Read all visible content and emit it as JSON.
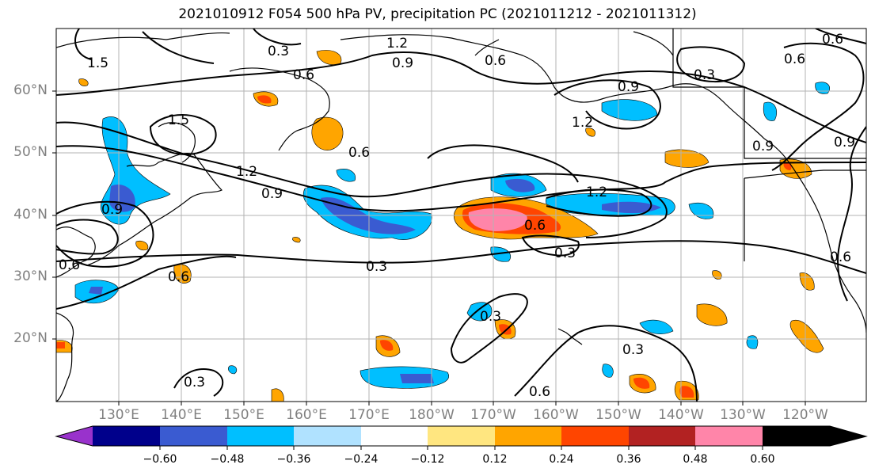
{
  "title": "2021010912 F054 500 hPa PV, precipitation PC (2021011212 - 2021011312)",
  "lat_labels": [
    "60°N",
    "50°N",
    "40°N",
    "30°N",
    "20°N"
  ],
  "lon_labels": [
    "130°E",
    "140°E",
    "150°E",
    "160°E",
    "170°E",
    "180°W",
    "170°W",
    "160°W",
    "150°W",
    "140°W",
    "130°W",
    "120°W"
  ],
  "contour_labels": [
    "1.5",
    "0.3",
    "1.2",
    "0.9",
    "0.6",
    "0.6",
    "1.5",
    "1.2",
    "0.9",
    "0.6",
    "0.9",
    "1.2",
    "1.2",
    "0.9",
    "0.6",
    "0.6",
    "0.3",
    "0.3",
    "0.3",
    "0.3",
    "0.3",
    "0.6",
    "0.6",
    "0.6",
    "0.3",
    "0.9",
    "0.9",
    "0.6",
    "0.6"
  ],
  "colorbar": {
    "labels": [
      "−0.60",
      "−0.48",
      "−0.36",
      "−0.24",
      "−0.12",
      "0.12",
      "0.24",
      "0.36",
      "0.48",
      "0.60"
    ],
    "colors": [
      "#9932cc",
      "#00008b",
      "#3a5bd1",
      "#00bfff",
      "#b0e2ff",
      "#ffffff",
      "#ffe680",
      "#ffa500",
      "#ff4500",
      "#b22222",
      "#ff85a9"
    ]
  },
  "map_colors": {
    "land_line": "#000000",
    "grid": "#b3b3b3",
    "pv_contour": "#000000"
  }
}
